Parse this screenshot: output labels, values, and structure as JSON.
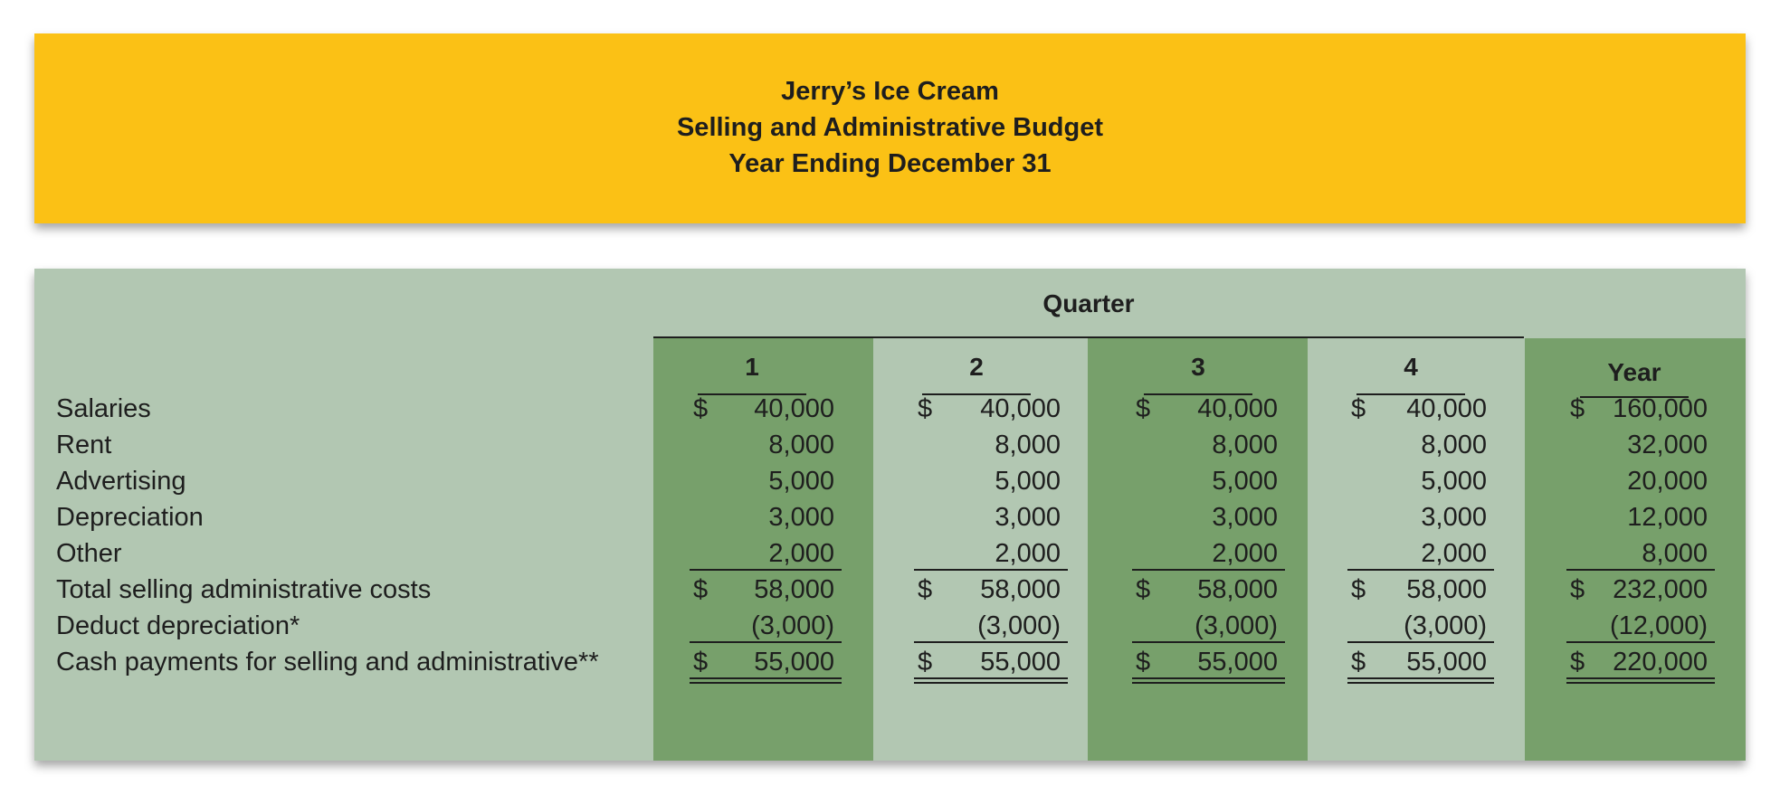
{
  "header": {
    "company": "Jerry’s Ice Cream",
    "report": "Selling and Administrative Budget",
    "period": "Year Ending December 31"
  },
  "table": {
    "group_label": "Quarter",
    "columns": [
      "1",
      "2",
      "3",
      "4",
      "Year"
    ],
    "rows": [
      {
        "label": "Salaries",
        "values": [
          [
            "$",
            "40,000"
          ],
          [
            "$",
            "40,000"
          ],
          [
            "$",
            "40,000"
          ],
          [
            "$",
            "40,000"
          ],
          [
            "$",
            "160,000"
          ]
        ]
      },
      {
        "label": "Rent",
        "values": [
          [
            "",
            "8,000"
          ],
          [
            "",
            "8,000"
          ],
          [
            "",
            "8,000"
          ],
          [
            "",
            "8,000"
          ],
          [
            "",
            "32,000"
          ]
        ]
      },
      {
        "label": "Advertising",
        "values": [
          [
            "",
            "5,000"
          ],
          [
            "",
            "5,000"
          ],
          [
            "",
            "5,000"
          ],
          [
            "",
            "5,000"
          ],
          [
            "",
            "20,000"
          ]
        ]
      },
      {
        "label": "Depreciation",
        "values": [
          [
            "",
            "3,000"
          ],
          [
            "",
            "3,000"
          ],
          [
            "",
            "3,000"
          ],
          [
            "",
            "3,000"
          ],
          [
            "",
            "12,000"
          ]
        ]
      },
      {
        "label": "Other",
        "values": [
          [
            "",
            "2,000"
          ],
          [
            "",
            "2,000"
          ],
          [
            "",
            "2,000"
          ],
          [
            "",
            "2,000"
          ],
          [
            "",
            "8,000"
          ]
        ]
      },
      {
        "label": "Total selling administrative costs",
        "values": [
          [
            "$",
            "58,000"
          ],
          [
            "$",
            "58,000"
          ],
          [
            "$",
            "58,000"
          ],
          [
            "$",
            "58,000"
          ],
          [
            "$",
            "232,000"
          ]
        ]
      },
      {
        "label": "Deduct depreciation*",
        "values": [
          [
            "",
            "(3,000)"
          ],
          [
            "",
            "(3,000)"
          ],
          [
            "",
            "(3,000)"
          ],
          [
            "",
            "(3,000)"
          ],
          [
            "",
            "(12,000)"
          ]
        ]
      },
      {
        "label": "Cash payments for selling and administrative**",
        "values": [
          [
            "$",
            "55,000"
          ],
          [
            "$",
            "55,000"
          ],
          [
            "$",
            "55,000"
          ],
          [
            "$",
            "55,000"
          ],
          [
            "$",
            "220,000"
          ]
        ]
      }
    ]
  }
}
